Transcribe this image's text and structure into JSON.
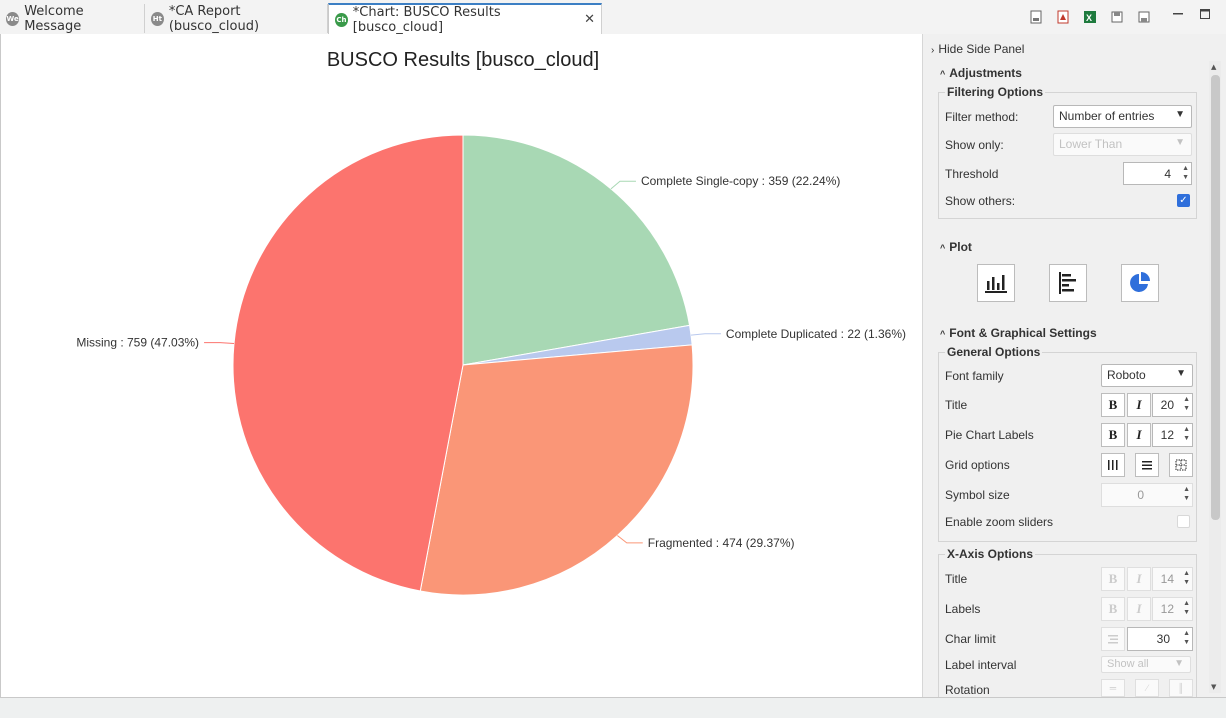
{
  "tabs": [
    {
      "label": "Welcome Message",
      "icon": "We"
    },
    {
      "label": "*CA Report (busco_cloud)",
      "icon": "Ht"
    },
    {
      "label": "*Chart: BUSCO Results [busco_cloud]",
      "icon": "Ch",
      "active": true
    }
  ],
  "chart_data": {
    "type": "pie",
    "title": "BUSCO Results [busco_cloud]",
    "slices": [
      {
        "label": "Complete Single-copy : 359 (22.24%)",
        "value": 359,
        "color": "#a8d8b4"
      },
      {
        "label": "Complete Duplicated : 22 (1.36%)",
        "value": 22,
        "color": "#b9c9ee"
      },
      {
        "label": "Fragmented : 474 (29.37%)",
        "value": 474,
        "color": "#fa9677"
      },
      {
        "label": "Missing : 759 (47.03%)",
        "value": 759,
        "color": "#fc746e"
      }
    ]
  },
  "side": {
    "hide_label": "Hide Side Panel",
    "adjustments": "Adjustments",
    "filtering_options": "Filtering Options",
    "filter_method_label": "Filter method:",
    "filter_method_value": "Number of entries",
    "show_only_label": "Show only:",
    "show_only_value": "Lower Than",
    "threshold_label": "Threshold",
    "threshold_value": "4",
    "show_others_label": "Show others:",
    "plot": "Plot",
    "font_settings": "Font & Graphical Settings",
    "general_options": "General Options",
    "font_family_label": "Font family",
    "font_family_value": "Roboto",
    "title_label": "Title",
    "title_size": "20",
    "pie_labels_label": "Pie Chart Labels",
    "pie_labels_size": "12",
    "grid_options_label": "Grid options",
    "symbol_size_label": "Symbol size",
    "symbol_size_value": "0",
    "zoom_sliders_label": "Enable zoom sliders",
    "xaxis_options": "X-Axis Options",
    "x_title_label": "Title",
    "x_title_size": "14",
    "x_labels_label": "Labels",
    "x_labels_size": "12",
    "char_limit_label": "Char limit",
    "char_limit_value": "30",
    "label_interval_label": "Label interval",
    "label_interval_value": "Show all",
    "rotation_label": "Rotation",
    "bold": "B",
    "italic": "I"
  }
}
